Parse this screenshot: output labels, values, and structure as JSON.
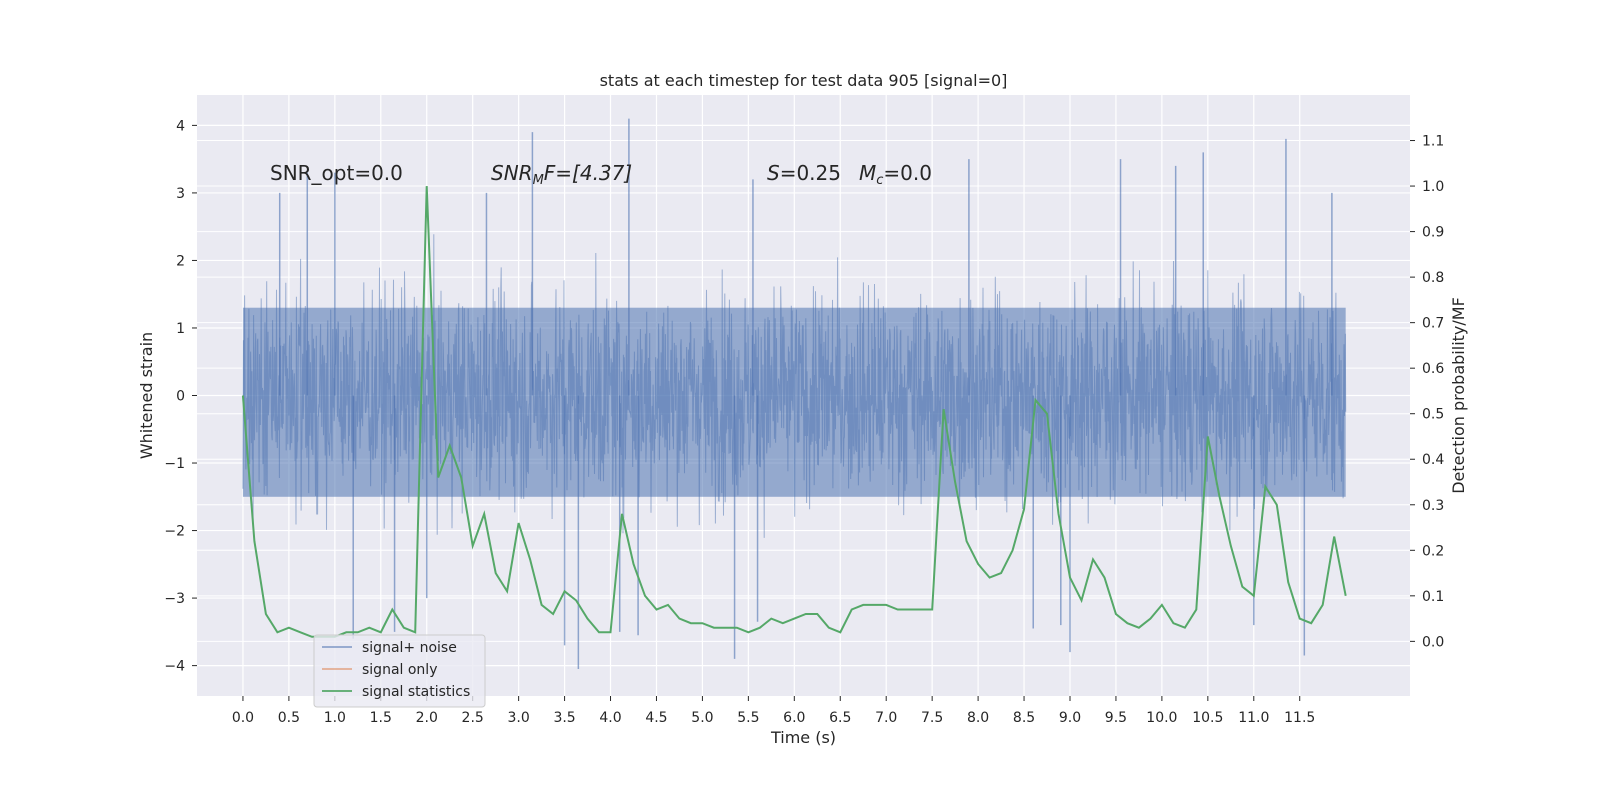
{
  "chart_data": {
    "type": "line",
    "title": "stats at each timestep for test data 905 [signal=0]",
    "xlabel": "Time (s)",
    "ylabel": "Whitened strain",
    "y2label": "Detection probability/MF",
    "xlim": [
      -0.5,
      12.7
    ],
    "ylim": [
      -4.45,
      4.45
    ],
    "y2lim": [
      -0.12,
      1.2
    ],
    "x_ticks": [
      "0.0",
      "0.5",
      "1.0",
      "1.5",
      "2.0",
      "2.5",
      "3.0",
      "3.5",
      "4.0",
      "4.5",
      "5.0",
      "5.5",
      "6.0",
      "6.5",
      "7.0",
      "7.5",
      "8.0",
      "8.5",
      "9.0",
      "9.5",
      "10.0",
      "10.5",
      "11.0",
      "11.5"
    ],
    "x_tick_values": [
      0,
      0.5,
      1,
      1.5,
      2,
      2.5,
      3,
      3.5,
      4,
      4.5,
      5,
      5.5,
      6,
      6.5,
      7,
      7.5,
      8,
      8.5,
      9,
      9.5,
      10,
      10.5,
      11,
      11.5
    ],
    "y_ticks": [
      "−4",
      "−3",
      "−2",
      "−1",
      "0",
      "1",
      "2",
      "3",
      "4"
    ],
    "y_tick_values": [
      -4,
      -3,
      -2,
      -1,
      0,
      1,
      2,
      3,
      4
    ],
    "y2_ticks": [
      "0.0",
      "0.1",
      "0.2",
      "0.3",
      "0.4",
      "0.5",
      "0.6",
      "0.7",
      "0.8",
      "0.9",
      "1.0",
      "1.1"
    ],
    "y2_tick_values": [
      0,
      0.1,
      0.2,
      0.3,
      0.4,
      0.5,
      0.6,
      0.7,
      0.8,
      0.9,
      1.0,
      1.1
    ],
    "grid": true,
    "legend_position": "lower-left",
    "annotations": {
      "snr_opt": "SNR_opt=0.0",
      "snr_mf_base": "SNR",
      "snr_mf_sub": "M",
      "snr_mf_rest": "F=[4.37]",
      "s_label": "S",
      "s_value": "=0.25",
      "mc_label": "M",
      "mc_sub": "c",
      "mc_value": "=0.0"
    },
    "series": [
      {
        "name": "signal+ noise",
        "color": "#4c72b0",
        "x_range": [
          0,
          12.0
        ],
        "description_core_band": [
          -1.5,
          1.3
        ],
        "notable_peaks": [
          {
            "x": 0.4,
            "y": 3.0
          },
          {
            "x": 0.7,
            "y": 3.3
          },
          {
            "x": 1.0,
            "y": 3.3
          },
          {
            "x": 2.65,
            "y": 3.0
          },
          {
            "x": 3.15,
            "y": 3.9
          },
          {
            "x": 4.2,
            "y": 4.1
          },
          {
            "x": 5.55,
            "y": 3.2
          },
          {
            "x": 7.9,
            "y": 3.5
          },
          {
            "x": 9.55,
            "y": 3.5
          },
          {
            "x": 10.15,
            "y": 3.4
          },
          {
            "x": 10.45,
            "y": 3.6
          },
          {
            "x": 11.35,
            "y": 3.8
          },
          {
            "x": 11.85,
            "y": 3.0
          }
        ],
        "notable_troughs": [
          {
            "x": 1.2,
            "y": -3.6
          },
          {
            "x": 1.65,
            "y": -3.5
          },
          {
            "x": 2.0,
            "y": -3.0
          },
          {
            "x": 3.5,
            "y": -3.7
          },
          {
            "x": 3.65,
            "y": -4.05
          },
          {
            "x": 4.1,
            "y": -3.5
          },
          {
            "x": 4.3,
            "y": -3.55
          },
          {
            "x": 5.35,
            "y": -3.9
          },
          {
            "x": 5.6,
            "y": -3.35
          },
          {
            "x": 8.6,
            "y": -3.45
          },
          {
            "x": 8.9,
            "y": -3.4
          },
          {
            "x": 9.0,
            "y": -3.8
          },
          {
            "x": 11.0,
            "y": -3.4
          },
          {
            "x": 11.55,
            "y": -3.85
          }
        ]
      },
      {
        "name": "signal only",
        "color": "#dd8452",
        "x": [],
        "y": []
      },
      {
        "name": "signal statistics",
        "color": "#55a868",
        "axis": "right",
        "x": [
          0,
          0.125,
          0.25,
          0.375,
          0.5,
          0.625,
          0.75,
          0.875,
          1.0,
          1.125,
          1.25,
          1.375,
          1.5,
          1.625,
          1.75,
          1.875,
          2.0,
          2.125,
          2.25,
          2.375,
          2.5,
          2.625,
          2.75,
          2.875,
          3.0,
          3.125,
          3.25,
          3.375,
          3.5,
          3.625,
          3.75,
          3.875,
          4.0,
          4.125,
          4.25,
          4.375,
          4.5,
          4.625,
          4.75,
          4.875,
          5.0,
          5.125,
          5.25,
          5.375,
          5.5,
          5.625,
          5.75,
          5.875,
          6.0,
          6.125,
          6.25,
          6.375,
          6.5,
          6.625,
          6.75,
          6.875,
          7.0,
          7.125,
          7.25,
          7.375,
          7.5,
          7.625,
          7.75,
          7.875,
          8.0,
          8.125,
          8.25,
          8.375,
          8.5,
          8.625,
          8.75,
          8.875,
          9.0,
          9.125,
          9.25,
          9.375,
          9.5,
          9.625,
          9.75,
          9.875,
          10.0,
          10.125,
          10.25,
          10.375,
          10.5,
          10.625,
          10.75,
          10.875,
          11.0,
          11.125,
          11.25,
          11.375,
          11.5,
          11.625,
          11.75,
          11.875,
          12.0
        ],
        "y": [
          0.54,
          0.22,
          0.06,
          0.02,
          0.03,
          0.02,
          0.01,
          0.01,
          0.01,
          0.02,
          0.02,
          0.03,
          0.02,
          0.07,
          0.03,
          0.02,
          1.0,
          0.36,
          0.43,
          0.36,
          0.21,
          0.28,
          0.15,
          0.11,
          0.26,
          0.18,
          0.08,
          0.06,
          0.11,
          0.09,
          0.05,
          0.02,
          0.02,
          0.28,
          0.17,
          0.1,
          0.07,
          0.08,
          0.05,
          0.04,
          0.04,
          0.03,
          0.03,
          0.03,
          0.02,
          0.03,
          0.05,
          0.04,
          0.05,
          0.06,
          0.06,
          0.03,
          0.02,
          0.07,
          0.08,
          0.08,
          0.08,
          0.07,
          0.07,
          0.07,
          0.07,
          0.51,
          0.35,
          0.22,
          0.17,
          0.14,
          0.15,
          0.2,
          0.29,
          0.53,
          0.5,
          0.28,
          0.14,
          0.09,
          0.18,
          0.14,
          0.06,
          0.04,
          0.03,
          0.05,
          0.08,
          0.04,
          0.03,
          0.07,
          0.45,
          0.32,
          0.21,
          0.12,
          0.1,
          0.34,
          0.3,
          0.13,
          0.05,
          0.04,
          0.08,
          0.23,
          0.1
        ]
      }
    ]
  }
}
